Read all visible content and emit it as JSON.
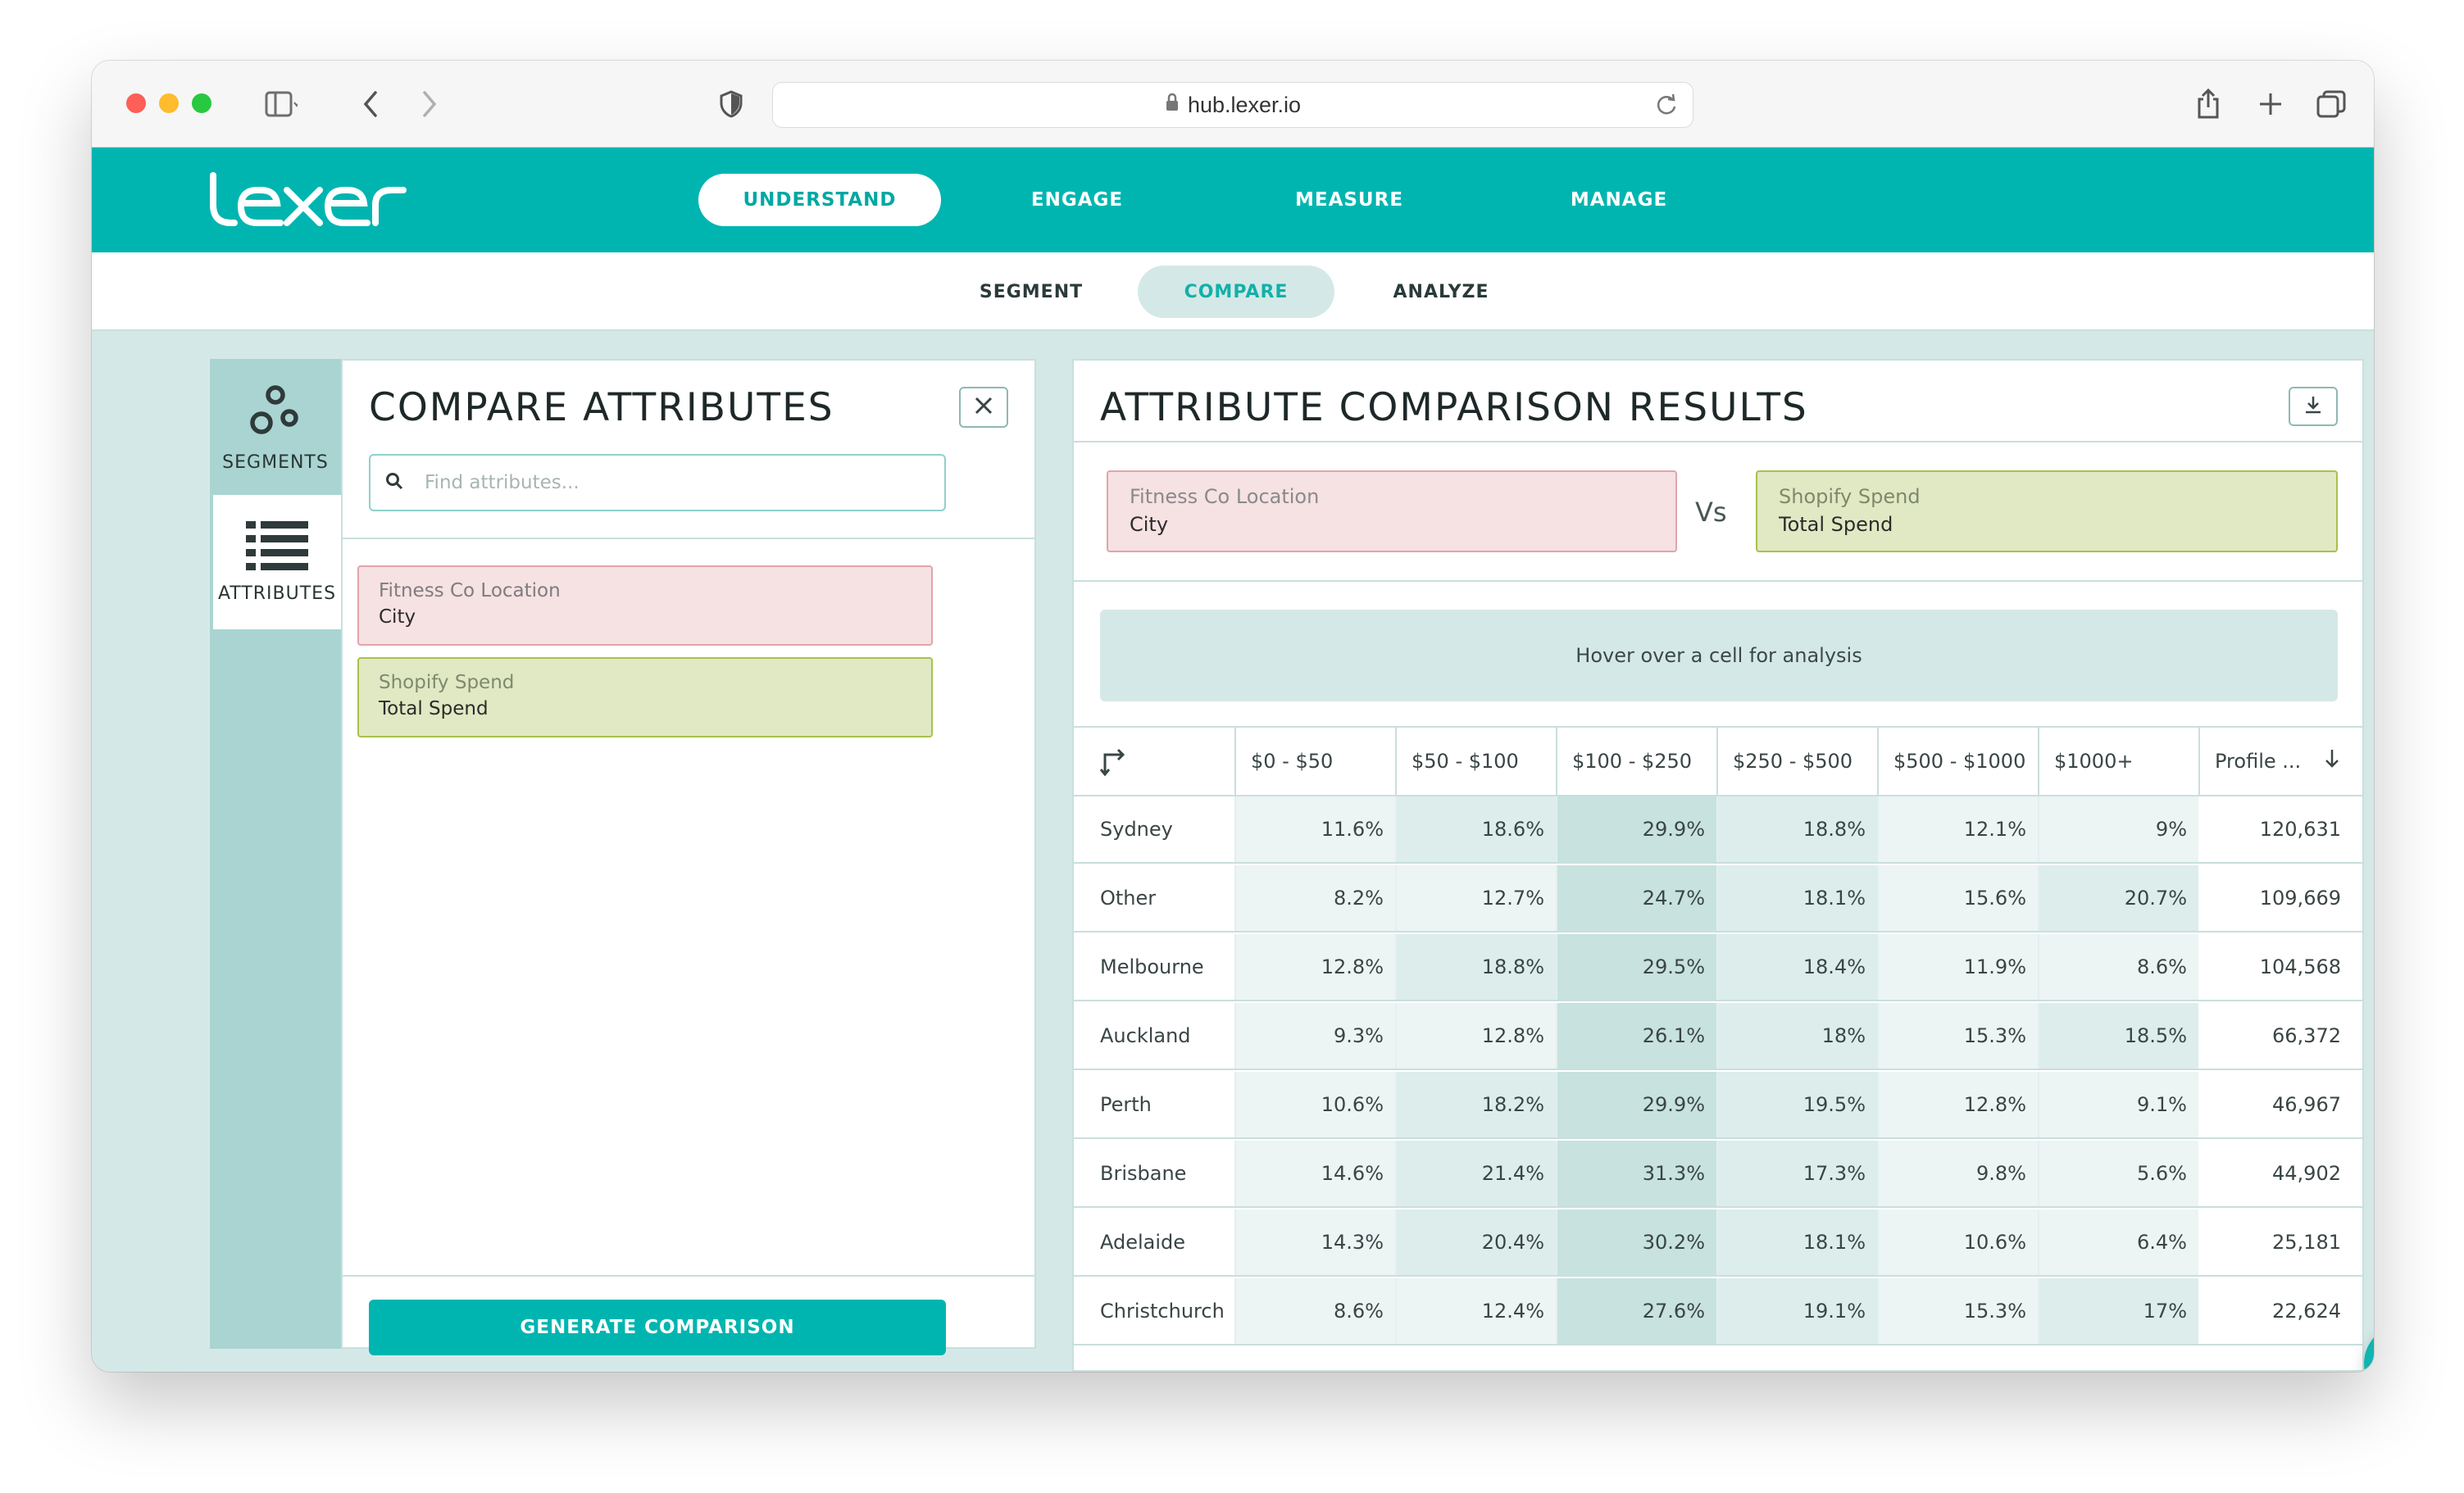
{
  "browser": {
    "url": "hub.lexer.io"
  },
  "brand": {
    "logo_text": "lexer",
    "accent_color": "#00b5b0"
  },
  "top_nav": {
    "items": [
      {
        "label": "UNDERSTAND",
        "active": true
      },
      {
        "label": "ENGAGE",
        "active": false
      },
      {
        "label": "MEASURE",
        "active": false
      },
      {
        "label": "MANAGE",
        "active": false
      }
    ]
  },
  "sub_nav": {
    "items": [
      {
        "label": "SEGMENT",
        "active": false
      },
      {
        "label": "COMPARE",
        "active": true
      },
      {
        "label": "ANALYZE",
        "active": false
      }
    ]
  },
  "rail": {
    "segments_label": "SEGMENTS",
    "attributes_label": "ATTRIBUTES"
  },
  "compare_panel": {
    "title": "COMPARE ATTRIBUTES",
    "search_placeholder": "Find attributes...",
    "attributes": [
      {
        "group": "Fitness Co Location",
        "name": "City",
        "color": "pink"
      },
      {
        "group": "Shopify Spend",
        "name": "Total Spend",
        "color": "green"
      }
    ],
    "generate_label": "GENERATE COMPARISON"
  },
  "results_panel": {
    "title": "ATTRIBUTE COMPARISON RESULTS",
    "left_attr": {
      "group": "Fitness Co Location",
      "name": "City"
    },
    "vs_label": "Vs",
    "right_attr": {
      "group": "Shopify Spend",
      "name": "Total Spend"
    },
    "hover_hint": "Hover over a cell for analysis",
    "columns": [
      "$0 - $50",
      "$50 - $100",
      "$100 - $250",
      "$250 - $500",
      "$500 - $1000",
      "$1000+",
      "Profile ..."
    ],
    "rows": [
      {
        "city": "Sydney",
        "values": [
          "11.6%",
          "18.6%",
          "29.9%",
          "18.8%",
          "12.1%",
          "9%"
        ],
        "profiles": "120,631"
      },
      {
        "city": "Other",
        "values": [
          "8.2%",
          "12.7%",
          "24.7%",
          "18.1%",
          "15.6%",
          "20.7%"
        ],
        "profiles": "109,669"
      },
      {
        "city": "Melbourne",
        "values": [
          "12.8%",
          "18.8%",
          "29.5%",
          "18.4%",
          "11.9%",
          "8.6%"
        ],
        "profiles": "104,568"
      },
      {
        "city": "Auckland",
        "values": [
          "9.3%",
          "12.8%",
          "26.1%",
          "18%",
          "15.3%",
          "18.5%"
        ],
        "profiles": "66,372"
      },
      {
        "city": "Perth",
        "values": [
          "10.6%",
          "18.2%",
          "29.9%",
          "19.5%",
          "12.8%",
          "9.1%"
        ],
        "profiles": "46,967"
      },
      {
        "city": "Brisbane",
        "values": [
          "14.6%",
          "21.4%",
          "31.3%",
          "17.3%",
          "9.8%",
          "5.6%"
        ],
        "profiles": "44,902"
      },
      {
        "city": "Adelaide",
        "values": [
          "14.3%",
          "20.4%",
          "30.2%",
          "18.1%",
          "10.6%",
          "6.4%"
        ],
        "profiles": "25,181"
      },
      {
        "city": "Christchurch",
        "values": [
          "8.6%",
          "12.4%",
          "27.6%",
          "19.1%",
          "15.3%",
          "17%"
        ],
        "profiles": "22,624"
      }
    ]
  }
}
